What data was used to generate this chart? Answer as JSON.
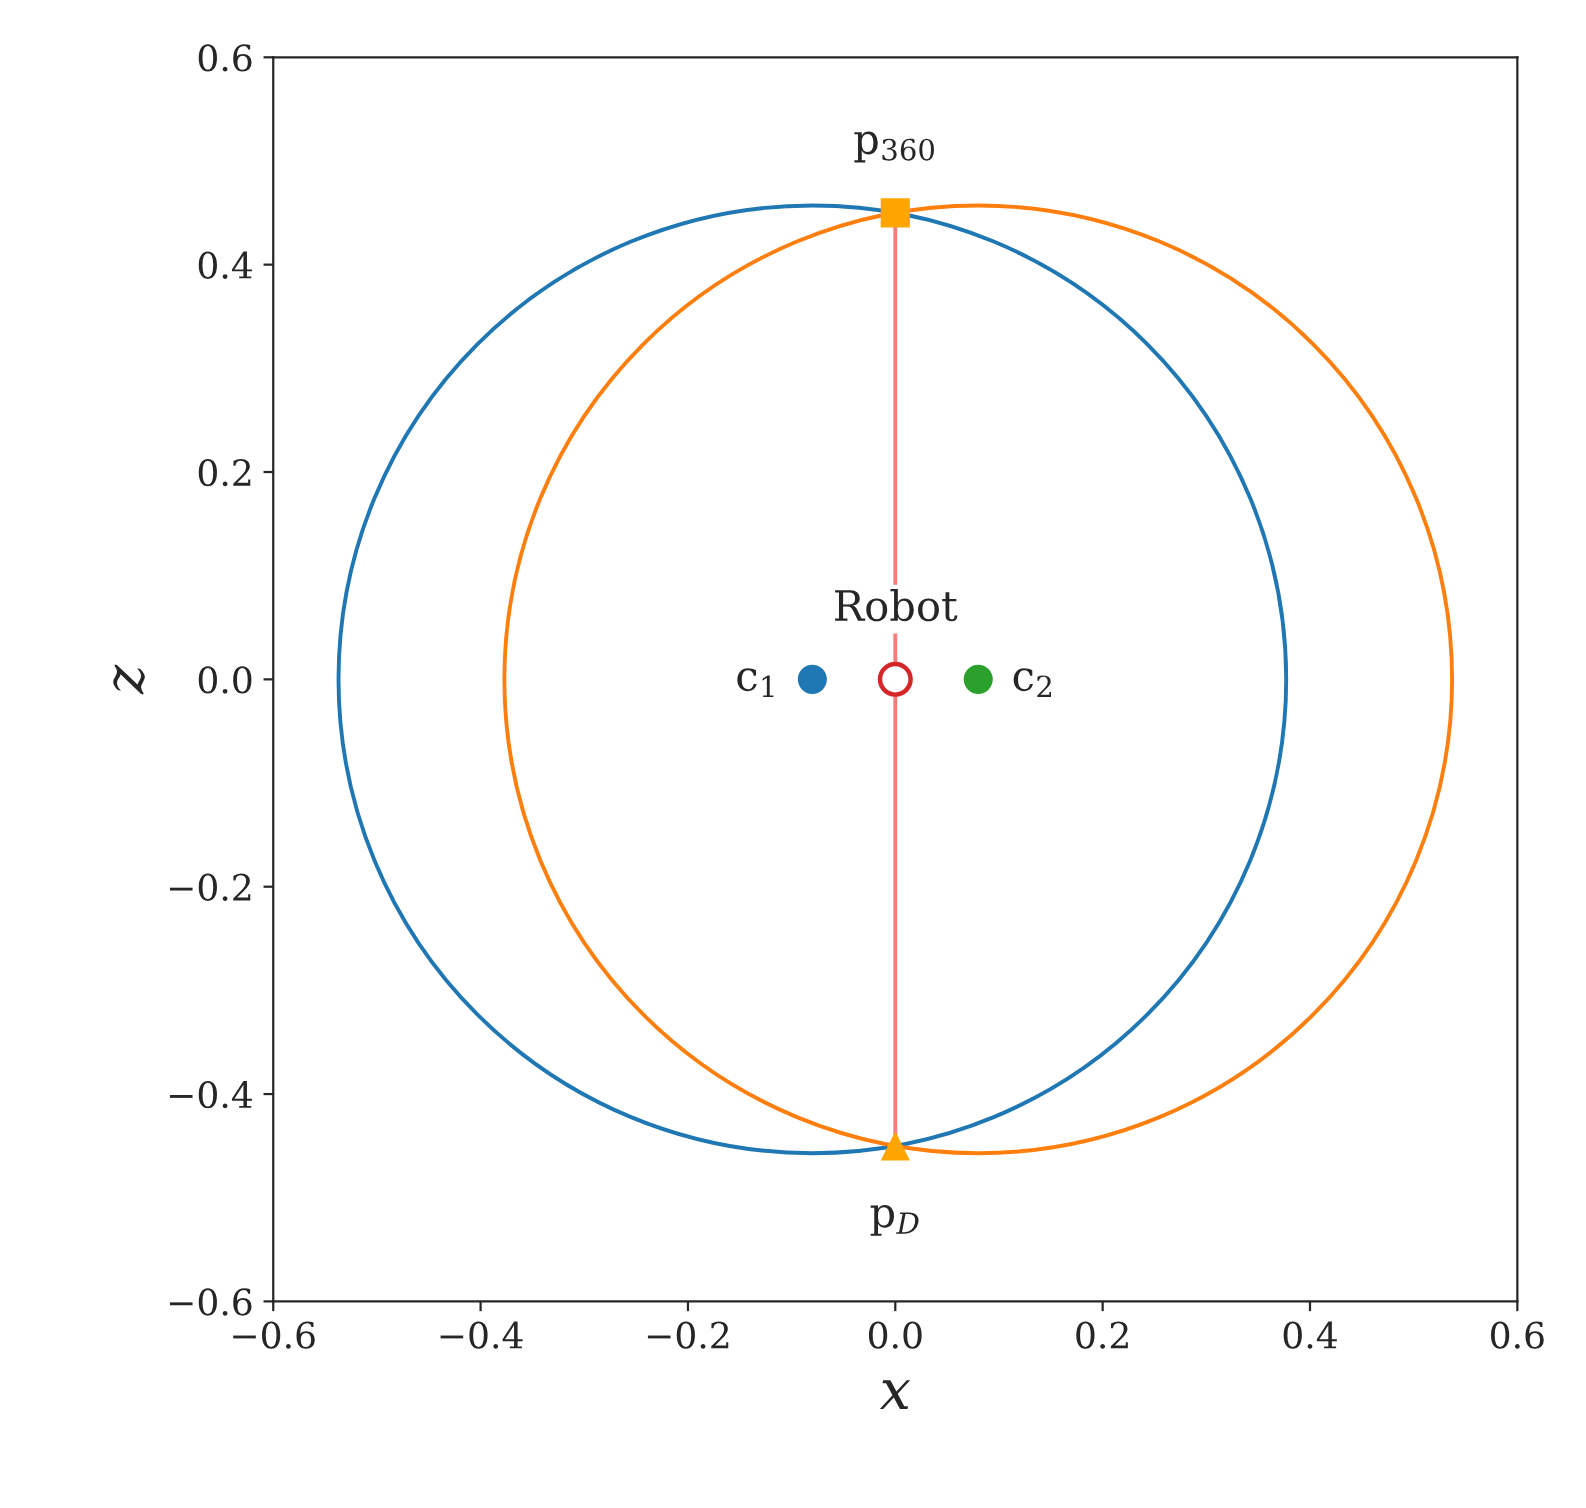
{
  "chart_data": {
    "type": "line",
    "xlabel": "x",
    "ylabel": "z",
    "xlim": [
      -0.6,
      0.6
    ],
    "ylim": [
      -0.6,
      0.6
    ],
    "xticks": [
      -0.6,
      -0.4,
      -0.2,
      {
        "value": 0,
        "label": "0.0"
      },
      0.2,
      0.4,
      0.6
    ],
    "yticks": [
      -0.6,
      -0.4,
      -0.2,
      {
        "value": 0,
        "label": "0.0"
      },
      0.2,
      0.4,
      0.6
    ],
    "grid": false,
    "legend": false,
    "series": [
      {
        "color": "#f47c7c",
        "marker": "none",
        "x": [
          0,
          0
        ],
        "values": [
          -0.45,
          0.45
        ]
      },
      {
        "type": "scatter",
        "name": "c$_{1}$",
        "color": "#1f77b4",
        "marker": "circle",
        "x": [
          -0.08
        ],
        "values": [
          0
        ]
      },
      {
        "name": "Robot",
        "color": "#d62728",
        "marker": "circle",
        "x": [
          0
        ],
        "values": [
          0
        ]
      },
      {
        "type": "scatter",
        "name": "c$_{2}$",
        "color": "#2ca02c",
        "marker": "circle",
        "x": [
          0.08
        ],
        "values": [
          0
        ]
      },
      {
        "type": "scatter",
        "name": "p$_{360}$",
        "color": "#ffa500",
        "marker": "square",
        "x": [
          0
        ],
        "values": [
          0.45
        ]
      },
      {
        "type": "scatter",
        "name": "p$_{D}$",
        "color": "#ffa500",
        "marker": "triangle",
        "x": [
          0
        ],
        "values": [
          -0.45
        ]
      }
    ]
  }
}
